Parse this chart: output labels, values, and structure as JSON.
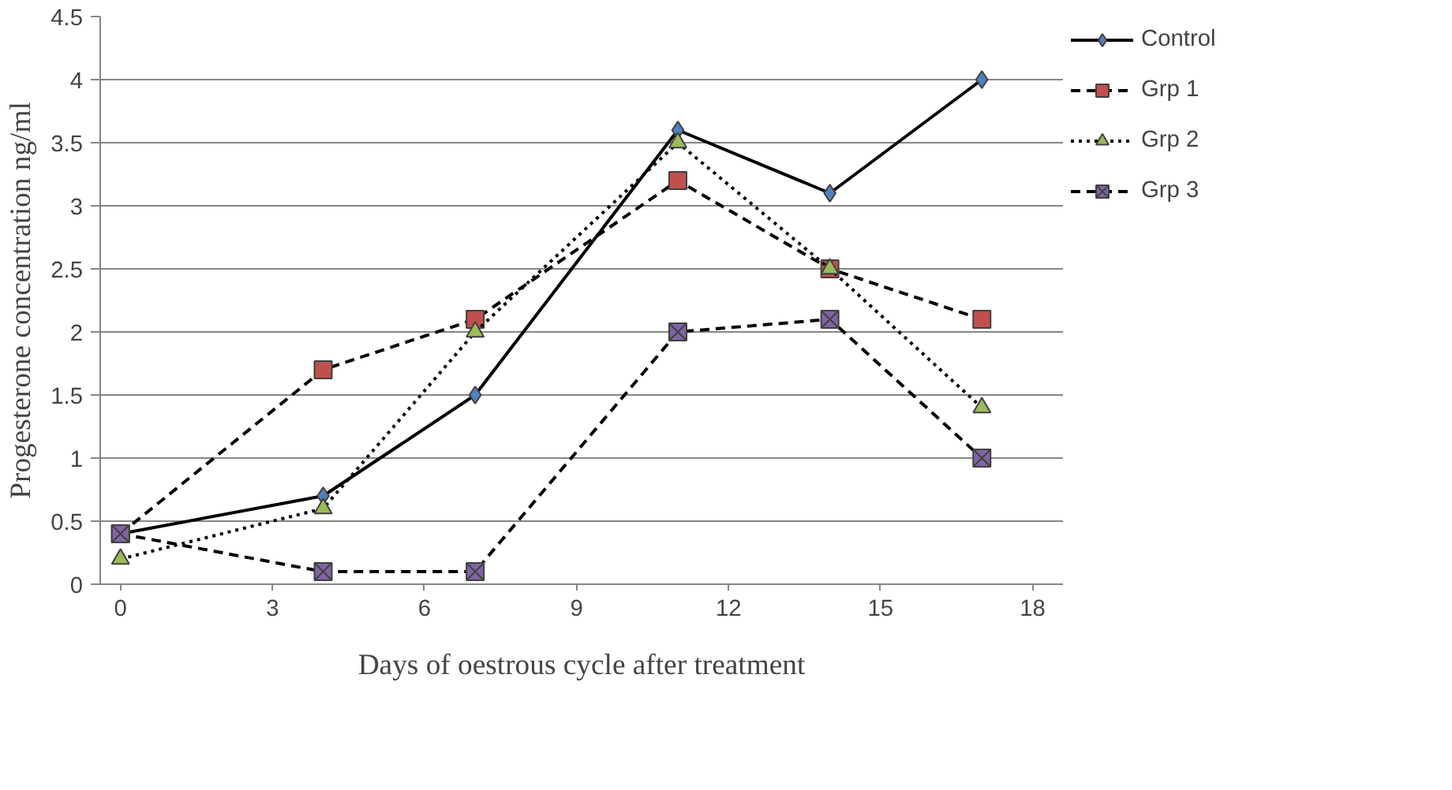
{
  "chart_data": {
    "type": "line",
    "xlabel": "Days of oestrous cycle after treatment",
    "ylabel": "Progesterone concentration ng/ml",
    "x": [
      0,
      4,
      7,
      11,
      14,
      17
    ],
    "series": [
      {
        "name": "Control",
        "color": "#000000",
        "colors": [
          "#4f81bd",
          "#4f81bd",
          "#4f81bd",
          "#4f81bd",
          "#4f81bd",
          "#4f81bd"
        ],
        "marker": "diamond",
        "line_style": "solid",
        "values": [
          0.4,
          0.7,
          1.5,
          3.6,
          3.1,
          4.0
        ]
      },
      {
        "name": "Grp 1",
        "color": "#000000",
        "colors": [
          "#c0504d",
          "#c0504d",
          "#c0504d",
          "#c0504d",
          "#c0504d",
          "#c0504d"
        ],
        "marker": "square",
        "line_style": "dashed",
        "values": [
          0.4,
          1.7,
          2.1,
          3.2,
          2.5,
          2.1
        ]
      },
      {
        "name": "Grp 2",
        "color": "#000000",
        "colors": [
          "#9bbb59",
          "#9bbb59",
          "#9bbb59",
          "#9bbb59",
          "#9bbb59",
          "#9bbb59"
        ],
        "marker": "triangle",
        "line_style": "dotted",
        "values": [
          0.2,
          0.6,
          2.0,
          3.5,
          2.5,
          1.4
        ]
      },
      {
        "name": "Grp 3",
        "color": "#000000",
        "colors": [
          "#8064a2",
          "#8064a2",
          "#8064a2",
          "#8064a2",
          "#8064a2",
          "#8064a2"
        ],
        "marker": "cross",
        "line_style": "dashed",
        "values": [
          0.4,
          0.1,
          0.1,
          2.0,
          2.1,
          1.0
        ]
      }
    ],
    "xlim": [
      -0.4,
      18.6
    ],
    "xticks": [
      0,
      3,
      6,
      9,
      12,
      15,
      18
    ],
    "ylim": [
      0,
      4.5
    ],
    "yticks": [
      0,
      0.5,
      1,
      1.5,
      2,
      2.5,
      3,
      3.5,
      4,
      4.5
    ],
    "grid": "y",
    "legend": "right"
  }
}
